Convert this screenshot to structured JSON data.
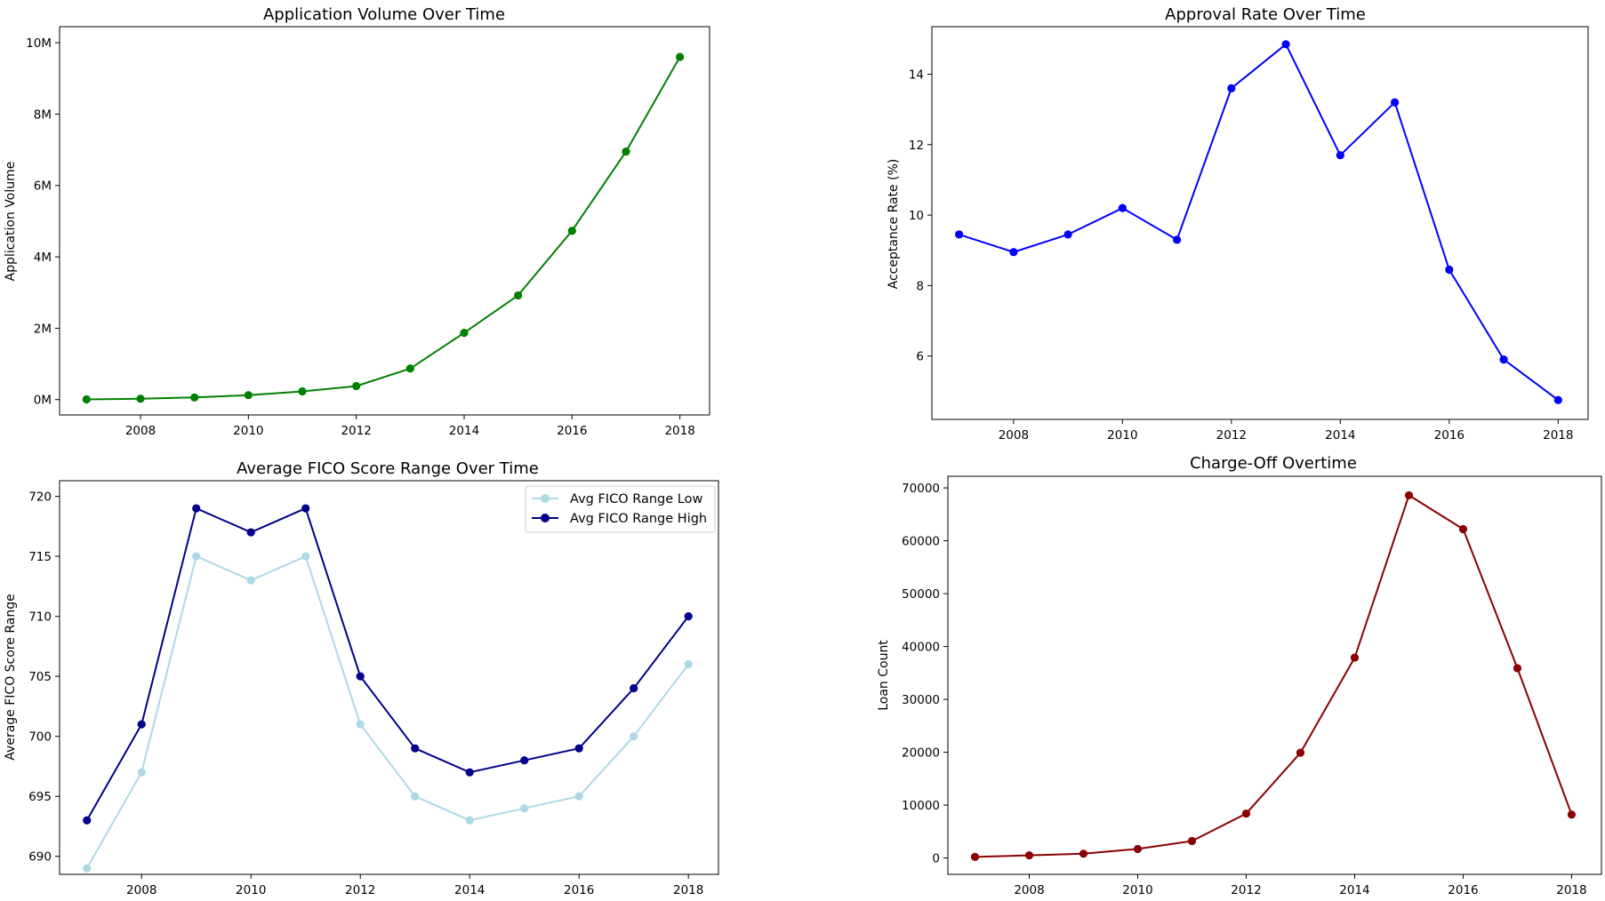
{
  "chart_data": [
    {
      "type": "line",
      "title": "Application Volume Over Time",
      "xlabel": "",
      "ylabel": "Application Volume",
      "x": [
        2007,
        2008,
        2009,
        2010,
        2011,
        2012,
        2013,
        2014,
        2015,
        2016,
        2017,
        2018
      ],
      "xlim": [
        2006.5,
        2018.55
      ],
      "xticks": [
        2008,
        2010,
        2012,
        2014,
        2016,
        2018
      ],
      "ylim": [
        -430000,
        10450000
      ],
      "yticks": [
        0,
        2000000,
        4000000,
        6000000,
        8000000,
        10000000
      ],
      "ytick_labels": [
        "0M",
        "2M",
        "4M",
        "6M",
        "8M",
        "10M"
      ],
      "grid": false,
      "series": [
        {
          "name": "",
          "color": "#008000",
          "values": [
            5000,
            25000,
            60000,
            125000,
            230000,
            380000,
            870000,
            1870000,
            2920000,
            4730000,
            6950000,
            9600000
          ]
        }
      ]
    },
    {
      "type": "line",
      "title": "Approval Rate Over Time",
      "xlabel": "",
      "ylabel": "Acceptance Rate (%)",
      "x": [
        2007,
        2008,
        2009,
        2010,
        2011,
        2012,
        2013,
        2014,
        2015,
        2016,
        2017,
        2018
      ],
      "xlim": [
        2006.5,
        2018.55
      ],
      "xticks": [
        2008,
        2010,
        2012,
        2014,
        2016,
        2018
      ],
      "ylim": [
        4.2,
        15.35
      ],
      "yticks": [
        6,
        8,
        10,
        12,
        14
      ],
      "ytick_labels": [
        "6",
        "8",
        "10",
        "12",
        "14"
      ],
      "grid": false,
      "series": [
        {
          "name": "",
          "color": "#0000ff",
          "values": [
            9.45,
            8.95,
            9.45,
            10.2,
            9.3,
            13.6,
            14.85,
            11.7,
            13.2,
            8.45,
            5.9,
            4.75
          ]
        }
      ]
    },
    {
      "type": "line",
      "title": "Average FICO Score Range Over Time",
      "xlabel": "",
      "ylabel": "Average FICO Score Range",
      "x": [
        2007,
        2008,
        2009,
        2010,
        2011,
        2012,
        2013,
        2014,
        2015,
        2016,
        2017,
        2018
      ],
      "xlim": [
        2006.5,
        2018.55
      ],
      "xticks": [
        2008,
        2010,
        2012,
        2014,
        2016,
        2018
      ],
      "ylim": [
        688.5,
        721.3
      ],
      "yticks": [
        690,
        695,
        700,
        705,
        710,
        715,
        720
      ],
      "ytick_labels": [
        "690",
        "695",
        "700",
        "705",
        "710",
        "715",
        "720"
      ],
      "grid": false,
      "legend": "top-right",
      "series": [
        {
          "name": "Avg FICO Range Low",
          "color": "#add8e6",
          "values": [
            689,
            697,
            715,
            713,
            715,
            701,
            695,
            693,
            694,
            695,
            700,
            706
          ]
        },
        {
          "name": "Avg FICO Range High",
          "color": "#00008b",
          "values": [
            693,
            701,
            719,
            717,
            719,
            705,
            699,
            697,
            698,
            699,
            704,
            710
          ]
        }
      ]
    },
    {
      "type": "line",
      "title": "Charge-Off Overtime",
      "xlabel": "",
      "ylabel": "Loan Count",
      "x": [
        2007,
        2008,
        2009,
        2010,
        2011,
        2012,
        2013,
        2014,
        2015,
        2016,
        2017,
        2018
      ],
      "xlim": [
        2006.5,
        2018.55
      ],
      "xticks": [
        2008,
        2010,
        2012,
        2014,
        2016,
        2018
      ],
      "ylim": [
        -3100,
        72200
      ],
      "yticks": [
        0,
        10000,
        20000,
        30000,
        40000,
        50000,
        60000,
        70000
      ],
      "ytick_labels": [
        "0",
        "10000",
        "20000",
        "30000",
        "40000",
        "50000",
        "60000",
        "70000"
      ],
      "grid": false,
      "series": [
        {
          "name": "",
          "color": "#8b0000",
          "values": [
            200,
            500,
            800,
            1700,
            3200,
            8400,
            19900,
            37900,
            68600,
            62200,
            35900,
            8200
          ]
        }
      ]
    }
  ]
}
